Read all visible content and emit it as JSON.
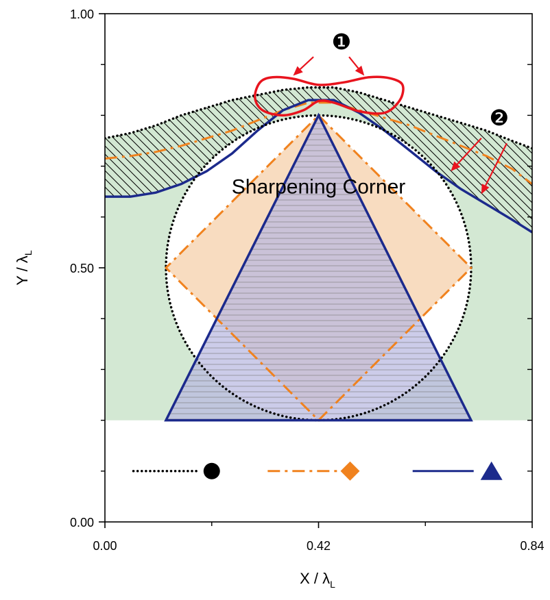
{
  "chart_data": {
    "type": "line",
    "xlabel": "X / λ",
    "xlabel_sub": "L",
    "ylabel": "Y / λ",
    "ylabel_sub": "L",
    "xlim": [
      0.0,
      0.84
    ],
    "ylim": [
      0.0,
      1.0
    ],
    "xticks": [
      "0.00",
      "0.42",
      "0.84"
    ],
    "yticks": [
      "0.00",
      "0.50",
      "1.00"
    ],
    "x_minor_ticks": [
      0.21,
      0.63
    ],
    "y_minor_ticks": [
      0.1,
      0.2,
      0.3,
      0.4,
      0.6,
      0.7,
      0.8,
      0.9
    ],
    "grid": false,
    "annotations": [
      {
        "text": "Sharpening Corner",
        "x": 0.42,
        "y": 0.66
      },
      {
        "text": "❶",
        "x": 0.465,
        "y": 0.945
      },
      {
        "text": "❷",
        "x": 0.775,
        "y": 0.795
      }
    ],
    "colors": {
      "circle_line": "#000000",
      "diamond_line": "#f0821e",
      "triangle_line": "#1c2a8c",
      "red_loop": "#e8141e",
      "green_fill": "#d3e8d3",
      "orange_fill": "#f8dcc0",
      "triangle_fill": "#b8b8e0"
    },
    "shapes": [
      {
        "name": "circle",
        "style": "dotted",
        "center": [
          0.42,
          0.5
        ],
        "radius": 0.3
      },
      {
        "name": "diamond",
        "style": "dash-dot",
        "vertices": [
          [
            0.42,
            0.8
          ],
          [
            0.72,
            0.5
          ],
          [
            0.42,
            0.2
          ],
          [
            0.12,
            0.5
          ]
        ]
      },
      {
        "name": "triangle",
        "style": "solid",
        "vertices": [
          [
            0.42,
            0.8
          ],
          [
            0.72,
            0.2
          ],
          [
            0.12,
            0.2
          ]
        ]
      }
    ],
    "series": [
      {
        "style": "dotted",
        "x": [
          0.0,
          0.05,
          0.1,
          0.15,
          0.2,
          0.25,
          0.3,
          0.35,
          0.4,
          0.45,
          0.5,
          0.55,
          0.6,
          0.65,
          0.7,
          0.75,
          0.8,
          0.84
        ],
        "y": [
          0.755,
          0.765,
          0.78,
          0.8,
          0.815,
          0.83,
          0.84,
          0.85,
          0.855,
          0.855,
          0.845,
          0.83,
          0.815,
          0.8,
          0.785,
          0.77,
          0.75,
          0.735
        ]
      },
      {
        "style": "dash-dot",
        "x": [
          0.0,
          0.05,
          0.1,
          0.15,
          0.2,
          0.25,
          0.3,
          0.35,
          0.4,
          0.45,
          0.5,
          0.55,
          0.6,
          0.65,
          0.7,
          0.75,
          0.8,
          0.84
        ],
        "y": [
          0.715,
          0.72,
          0.728,
          0.74,
          0.755,
          0.77,
          0.79,
          0.81,
          0.825,
          0.825,
          0.81,
          0.795,
          0.78,
          0.76,
          0.74,
          0.72,
          0.695,
          0.665
        ]
      },
      {
        "style": "solid",
        "x": [
          0.0,
          0.05,
          0.1,
          0.15,
          0.2,
          0.25,
          0.3,
          0.35,
          0.4,
          0.45,
          0.5,
          0.55,
          0.6,
          0.65,
          0.7,
          0.75,
          0.8,
          0.84
        ],
        "y": [
          0.64,
          0.64,
          0.648,
          0.665,
          0.69,
          0.725,
          0.77,
          0.81,
          0.83,
          0.83,
          0.805,
          0.77,
          0.73,
          0.69,
          0.655,
          0.625,
          0.595,
          0.57
        ]
      }
    ],
    "red_loop": {
      "x": [
        0.305,
        0.33,
        0.37,
        0.42,
        0.47,
        0.52,
        0.56,
        0.585,
        0.58,
        0.55,
        0.5,
        0.45,
        0.42,
        0.39,
        0.35,
        0.31,
        0.295,
        0.305
      ],
      "y": [
        0.865,
        0.875,
        0.872,
        0.86,
        0.865,
        0.875,
        0.873,
        0.86,
        0.83,
        0.805,
        0.808,
        0.825,
        0.828,
        0.81,
        0.8,
        0.81,
        0.835,
        0.865
      ]
    },
    "arrows": [
      {
        "from": [
          0.41,
          0.915
        ],
        "to": [
          0.37,
          0.878
        ]
      },
      {
        "from": [
          0.48,
          0.915
        ],
        "to": [
          0.51,
          0.878
        ]
      },
      {
        "from": [
          0.74,
          0.755
        ],
        "to": [
          0.68,
          0.69
        ]
      },
      {
        "from": [
          0.79,
          0.745
        ],
        "to": [
          0.74,
          0.645
        ]
      }
    ],
    "legend": {
      "placement": "bottom-center",
      "items": [
        {
          "style": "dotted",
          "marker": "circle"
        },
        {
          "style": "dash-dot",
          "marker": "diamond"
        },
        {
          "style": "solid",
          "marker": "triangle"
        }
      ]
    }
  }
}
